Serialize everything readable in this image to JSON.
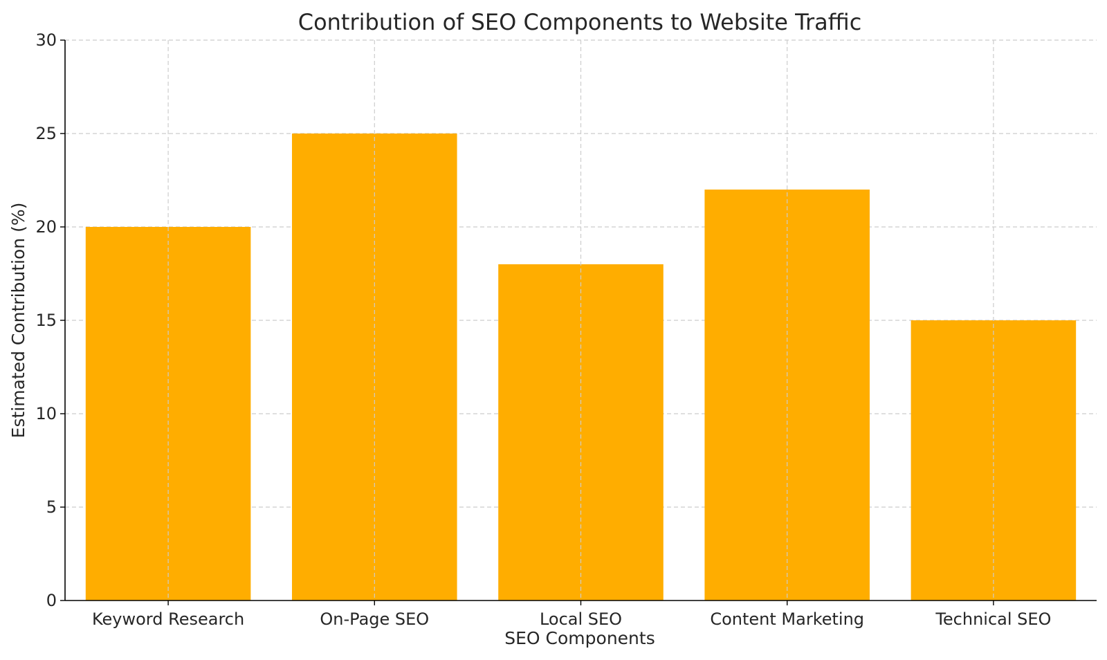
{
  "chart_data": {
    "type": "bar",
    "title": "Contribution of SEO Components to Website Traffic",
    "xlabel": "SEO Components",
    "ylabel": "Estimated Contribution (%)",
    "categories": [
      "Keyword Research",
      "On-Page SEO",
      "Local SEO",
      "Content Marketing",
      "Technical SEO"
    ],
    "values": [
      20,
      25,
      18,
      22,
      15
    ],
    "ylim": [
      0,
      30
    ],
    "yticks": [
      0,
      5,
      10,
      15,
      20,
      25,
      30
    ],
    "grid": true,
    "bar_color": "#FFAD00"
  }
}
